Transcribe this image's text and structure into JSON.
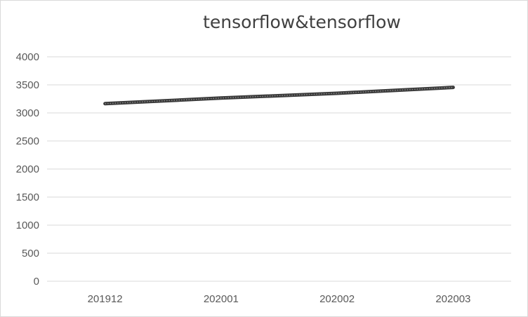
{
  "chart_data": {
    "type": "line",
    "title": "tensorflow&tensorflow",
    "categories": [
      "201912",
      "202001",
      "202002",
      "202003"
    ],
    "series": [
      {
        "values": [
          3165,
          3265,
          3350,
          3455
        ],
        "color": "#000000"
      }
    ],
    "ylim": [
      0,
      4000
    ],
    "yticks": [
      0,
      500,
      1000,
      1500,
      2000,
      2500,
      3000,
      3500,
      4000
    ],
    "grid": true,
    "legend": "none",
    "gridline_color": "#d9d9d9",
    "tick_label_color": "#595959",
    "title_color": "#404040"
  }
}
